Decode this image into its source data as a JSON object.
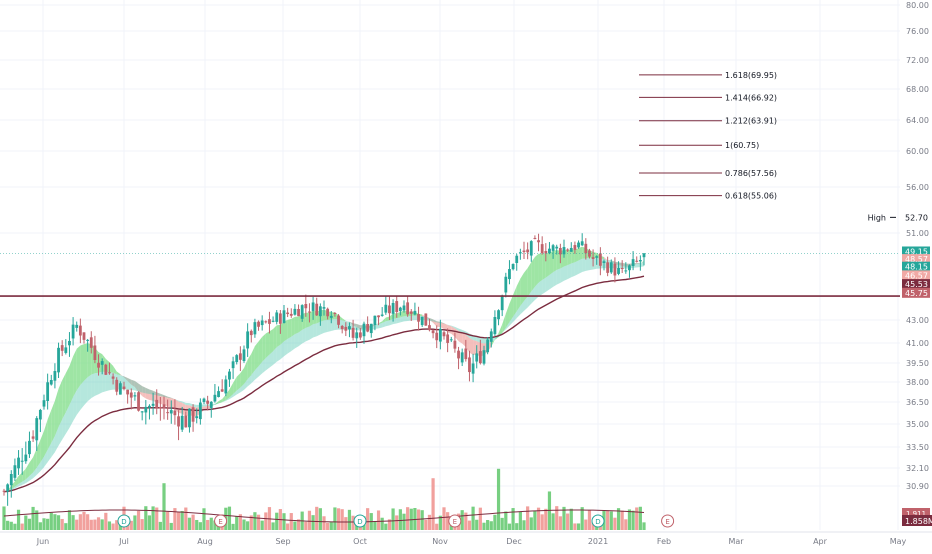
{
  "colors": {
    "up": "#26a69a",
    "down": "#c0626b",
    "bull_band": "#7ddc86",
    "bear_band": "#f0a9a5",
    "mid_band": "#5cc9b4",
    "ma_slow": "#7b2c3f",
    "fib": "#7b2c3f",
    "support": "#7b2c3f",
    "vol_up": "#5fc76b",
    "vol_down": "#ef8f8c",
    "grid": "#f0f3fa",
    "axis_text": "#787b86",
    "price_line": "#26a69a"
  },
  "chart_data": {
    "type": "candlestick",
    "title": "",
    "xlabel": "",
    "ylabel": "",
    "grid": true,
    "x_ticks": [
      "Jun",
      "Jul",
      "Aug",
      "Sep",
      "Oct",
      "Nov",
      "Dec",
      "2021",
      "Feb",
      "Mar",
      "Apr",
      "May"
    ],
    "y_ticks": [
      "30.90",
      "32.10",
      "33.50",
      "35.00",
      "36.50",
      "38.00",
      "39.50",
      "41.00",
      "43.00",
      "51.00",
      "56.00",
      "60.00",
      "64.00",
      "68.00",
      "72.00",
      "76.00",
      "80.00"
    ],
    "ylim": [
      29.6,
      81
    ],
    "y_axis_scale": "log",
    "support_level": 45.2,
    "ohlc": [],
    "fib_levels": [
      {
        "label": "1.618(69.95)",
        "value": 69.95
      },
      {
        "label": "1.414(66.92)",
        "value": 66.92
      },
      {
        "label": "1.212(63.91)",
        "value": 63.91
      },
      {
        "label": "1(60.75)",
        "value": 60.75
      },
      {
        "label": "0.786(57.56)",
        "value": 57.56
      },
      {
        "label": "0.618(55.06)",
        "value": 55.06
      }
    ],
    "price_labels": [
      {
        "text": "High",
        "value": "52.70",
        "price": 52.7,
        "color": "#ffffff",
        "text_color": "#131722"
      },
      {
        "text": "",
        "value": "49.15",
        "price": 49.3,
        "color": "#26a69a",
        "text_color": "#ffffff"
      },
      {
        "text": "",
        "value": "48.57",
        "price": 48.6,
        "color": "#f0a9a5",
        "text_color": "#ffffff"
      },
      {
        "text": "",
        "value": "48.15",
        "price": 47.9,
        "color": "#26a69a",
        "text_color": "#ffffff"
      },
      {
        "text": "",
        "value": "46.57",
        "price": 47.1,
        "color": "#f0a9a5",
        "text_color": "#ffffff"
      },
      {
        "text": "",
        "value": "45.53",
        "price": 46.3,
        "color": "#7b2c3f",
        "text_color": "#ffffff"
      },
      {
        "text": "",
        "value": "45.75",
        "price": 45.5,
        "color": "#c0626b",
        "text_color": "#ffffff"
      }
    ],
    "volume_label": "1.858M",
    "volume_label_small": "1.911",
    "event_markers": [
      {
        "label": "D",
        "month_pos": 1.0,
        "color": "#26a69a"
      },
      {
        "label": "E",
        "month_pos": 2.2,
        "color": "#c0626b"
      },
      {
        "label": "D",
        "month_pos": 4.0,
        "color": "#26a69a"
      },
      {
        "label": "E",
        "month_pos": 5.2,
        "color": "#c0626b"
      },
      {
        "label": "D",
        "month_pos": 7.0,
        "color": "#26a69a"
      },
      {
        "label": "E",
        "month_pos": 8.05,
        "color": "#c0626b"
      }
    ]
  }
}
